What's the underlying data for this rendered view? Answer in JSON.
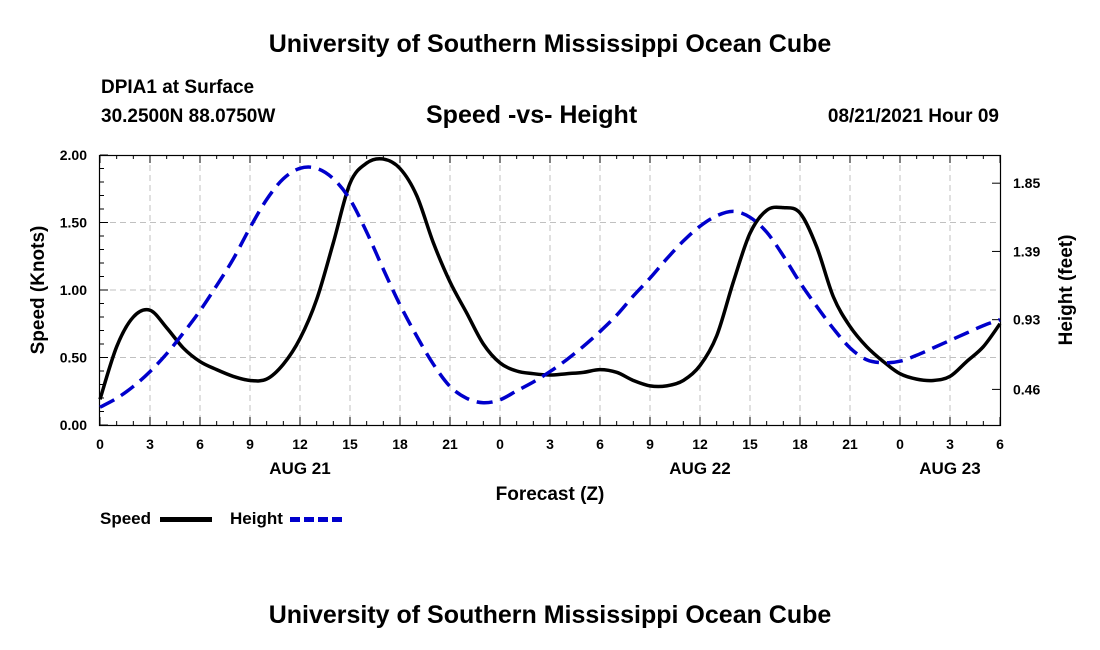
{
  "header": {
    "title": "University of Southern Mississippi Ocean Cube",
    "station": "DPIA1 at Surface",
    "coords": "30.2500N  88.0750W",
    "chart_title": "Speed -vs- Height",
    "datetime": "08/21/2021 Hour 09"
  },
  "footer": {
    "title": "University of Southern Mississippi Ocean Cube"
  },
  "legend": {
    "speed_label": "Speed",
    "height_label": "Height"
  },
  "chart_data": {
    "type": "line",
    "title": "Speed -vs- Height",
    "xlabel": "Forecast (Z)",
    "ylabel": "Speed (Knots)",
    "y2label": "Height (feet)",
    "xlim": [
      0,
      54
    ],
    "ylim": [
      0,
      2.0
    ],
    "y2lim": [
      0.22,
      2.04
    ],
    "grid": true,
    "legend_position": "bottom-left",
    "x_ticks": [
      {
        "x": 0,
        "label": "0"
      },
      {
        "x": 3,
        "label": "3"
      },
      {
        "x": 6,
        "label": "6"
      },
      {
        "x": 9,
        "label": "9"
      },
      {
        "x": 12,
        "label": "12"
      },
      {
        "x": 15,
        "label": "15"
      },
      {
        "x": 18,
        "label": "18"
      },
      {
        "x": 21,
        "label": "21"
      },
      {
        "x": 24,
        "label": "0"
      },
      {
        "x": 27,
        "label": "3"
      },
      {
        "x": 30,
        "label": "6"
      },
      {
        "x": 33,
        "label": "9"
      },
      {
        "x": 36,
        "label": "12"
      },
      {
        "x": 39,
        "label": "15"
      },
      {
        "x": 42,
        "label": "18"
      },
      {
        "x": 45,
        "label": "21"
      },
      {
        "x": 48,
        "label": "0"
      },
      {
        "x": 51,
        "label": "3"
      },
      {
        "x": 54,
        "label": "6"
      }
    ],
    "date_labels": [
      {
        "x": 12,
        "label": "AUG 21"
      },
      {
        "x": 36,
        "label": "AUG 22"
      },
      {
        "x": 51,
        "label": "AUG 23"
      }
    ],
    "y_ticks": [
      {
        "y": 0.0,
        "label": "0.00"
      },
      {
        "y": 0.5,
        "label": "0.50"
      },
      {
        "y": 1.0,
        "label": "1.00"
      },
      {
        "y": 1.5,
        "label": "1.50"
      },
      {
        "y": 2.0,
        "label": "2.00"
      }
    ],
    "y2_ticks": [
      {
        "y": 0.46,
        "label": "0.46"
      },
      {
        "y": 0.93,
        "label": "0.93"
      },
      {
        "y": 1.39,
        "label": "1.39"
      },
      {
        "y": 1.85,
        "label": "1.85"
      }
    ],
    "series": [
      {
        "name": "Speed",
        "axis": "left",
        "color": "#000000",
        "dash": "solid",
        "x": [
          0,
          1,
          2,
          3,
          4,
          5,
          6,
          7,
          8,
          9,
          10,
          11,
          12,
          13,
          14,
          15,
          16,
          17,
          18,
          19,
          20,
          21,
          22,
          23,
          24,
          25,
          26,
          27,
          28,
          29,
          30,
          31,
          32,
          33,
          34,
          35,
          36,
          37,
          38,
          39,
          40,
          41,
          42,
          43,
          44,
          45,
          46,
          47,
          48,
          49,
          50,
          51,
          52,
          53,
          54
        ],
        "values": [
          0.19,
          0.58,
          0.8,
          0.85,
          0.72,
          0.57,
          0.47,
          0.41,
          0.36,
          0.33,
          0.34,
          0.45,
          0.64,
          0.93,
          1.35,
          1.79,
          1.94,
          1.97,
          1.9,
          1.7,
          1.35,
          1.06,
          0.83,
          0.6,
          0.46,
          0.4,
          0.38,
          0.37,
          0.38,
          0.39,
          0.41,
          0.39,
          0.33,
          0.29,
          0.29,
          0.33,
          0.44,
          0.66,
          1.06,
          1.42,
          1.59,
          1.61,
          1.57,
          1.32,
          0.95,
          0.73,
          0.58,
          0.47,
          0.38,
          0.34,
          0.33,
          0.36,
          0.47,
          0.58,
          0.75
        ]
      },
      {
        "name": "Height",
        "axis": "right",
        "color": "#0000cc",
        "dash": "dashed",
        "x": [
          0,
          1,
          2,
          3,
          4,
          5,
          6,
          7,
          8,
          9,
          10,
          11,
          12,
          13,
          14,
          15,
          16,
          17,
          18,
          19,
          20,
          21,
          22,
          23,
          24,
          25,
          26,
          27,
          28,
          29,
          30,
          31,
          32,
          33,
          34,
          35,
          36,
          37,
          38,
          39,
          40,
          41,
          42,
          43,
          44,
          45,
          46,
          47,
          48,
          49,
          50,
          51,
          52,
          53,
          54
        ],
        "values": [
          0.34,
          0.4,
          0.48,
          0.58,
          0.7,
          0.84,
          0.99,
          1.16,
          1.34,
          1.55,
          1.74,
          1.88,
          1.95,
          1.95,
          1.88,
          1.74,
          1.52,
          1.27,
          1.03,
          0.82,
          0.63,
          0.48,
          0.4,
          0.37,
          0.39,
          0.45,
          0.51,
          0.58,
          0.66,
          0.75,
          0.85,
          0.96,
          1.09,
          1.21,
          1.34,
          1.46,
          1.56,
          1.63,
          1.66,
          1.62,
          1.52,
          1.36,
          1.18,
          1.02,
          0.87,
          0.74,
          0.66,
          0.64,
          0.65,
          0.69,
          0.74,
          0.79,
          0.84,
          0.89,
          0.93
        ]
      }
    ]
  }
}
